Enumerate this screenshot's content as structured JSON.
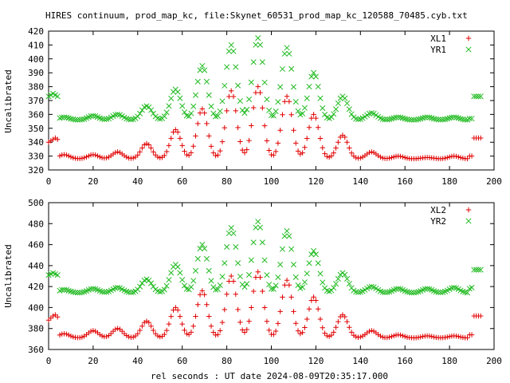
{
  "title": "HIRES continuum, prod_map_kc, file:Skynet_60531_prod_map_kc_120588_70485.cyb.txt",
  "colors": {
    "red": "#e00000",
    "green": "#22bb22",
    "axis": "#000000",
    "background": "#ffffff"
  },
  "chart_data": [
    {
      "type": "scatter",
      "ylabel": "Uncalibrated",
      "xlabel": "",
      "xlim": [
        0,
        200
      ],
      "ylim": [
        320,
        420
      ],
      "xticks": [
        0,
        20,
        40,
        60,
        80,
        100,
        120,
        140,
        160,
        180,
        200
      ],
      "yticks": [
        320,
        330,
        340,
        350,
        360,
        370,
        380,
        390,
        400,
        410,
        420
      ],
      "legend": "top-right",
      "base_values": [
        330,
        357
      ],
      "series": [
        {
          "name": "XL1",
          "marker": "plus",
          "color": "#e00000",
          "baseline": 328,
          "edges": [
            {
              "x": [
                0,
                1,
                2,
                3,
                4
              ],
              "y": [
                340,
                341,
                342,
                343,
                342
              ]
            },
            {
              "x": [
                189,
                190,
                191,
                192,
                193,
                194
              ],
              "y": [
                330,
                330,
                343,
                343,
                343,
                343
              ]
            }
          ],
          "bumps": [
            {
              "x": 7,
              "peak": 331
            },
            {
              "x": 20,
              "peak": 331
            },
            {
              "x": 31,
              "peak": 333
            },
            {
              "x": 44,
              "peak": 339
            },
            {
              "x": 57,
              "peak": 349
            },
            {
              "x": 69,
              "peak": 364
            },
            {
              "x": 82,
              "peak": 377
            },
            {
              "x": 94,
              "peak": 380
            },
            {
              "x": 107,
              "peak": 373
            },
            {
              "x": 119,
              "peak": 360
            },
            {
              "x": 132,
              "peak": 345
            },
            {
              "x": 145,
              "peak": 333
            },
            {
              "x": 157,
              "peak": 330
            },
            {
              "x": 170,
              "peak": 329
            },
            {
              "x": 182,
              "peak": 330
            }
          ]
        },
        {
          "name": "YR1",
          "marker": "cross",
          "color": "#22bb22",
          "baseline": 356,
          "edges": [
            {
              "x": [
                0,
                1,
                2,
                3,
                4
              ],
              "y": [
                373,
                374,
                375,
                374,
                373
              ]
            },
            {
              "x": [
                189,
                190,
                191,
                192,
                193,
                194
              ],
              "y": [
                357,
                357,
                373,
                373,
                373,
                373
              ]
            }
          ],
          "bumps": [
            {
              "x": 7,
              "peak": 358
            },
            {
              "x": 20,
              "peak": 359
            },
            {
              "x": 31,
              "peak": 360
            },
            {
              "x": 44,
              "peak": 366
            },
            {
              "x": 57,
              "peak": 378
            },
            {
              "x": 69,
              "peak": 395
            },
            {
              "x": 82,
              "peak": 410
            },
            {
              "x": 94,
              "peak": 415
            },
            {
              "x": 107,
              "peak": 408
            },
            {
              "x": 119,
              "peak": 390
            },
            {
              "x": 132,
              "peak": 373
            },
            {
              "x": 145,
              "peak": 361
            },
            {
              "x": 157,
              "peak": 358
            },
            {
              "x": 170,
              "peak": 358
            },
            {
              "x": 182,
              "peak": 358
            }
          ]
        }
      ]
    },
    {
      "type": "scatter",
      "ylabel": "Uncalibrated",
      "xlabel": "rel seconds : UT date 2024-08-09T20:35:17.000",
      "xlim": [
        0,
        200
      ],
      "ylim": [
        360,
        500
      ],
      "xticks": [
        0,
        20,
        40,
        60,
        80,
        100,
        120,
        140,
        160,
        180,
        200
      ],
      "yticks": [
        360,
        380,
        400,
        420,
        440,
        460,
        480,
        500
      ],
      "legend": "top-right",
      "base_values": [
        373,
        416
      ],
      "series": [
        {
          "name": "XL2",
          "marker": "plus",
          "color": "#e00000",
          "baseline": 371,
          "edges": [
            {
              "x": [
                0,
                1,
                2,
                3,
                4
              ],
              "y": [
                388,
                390,
                392,
                393,
                391
              ]
            },
            {
              "x": [
                189,
                190,
                191,
                192,
                193,
                194
              ],
              "y": [
                374,
                374,
                392,
                392,
                392,
                392
              ]
            }
          ],
          "bumps": [
            {
              "x": 7,
              "peak": 375
            },
            {
              "x": 20,
              "peak": 378
            },
            {
              "x": 31,
              "peak": 380
            },
            {
              "x": 44,
              "peak": 387
            },
            {
              "x": 57,
              "peak": 400
            },
            {
              "x": 69,
              "peak": 416
            },
            {
              "x": 82,
              "peak": 430
            },
            {
              "x": 94,
              "peak": 434
            },
            {
              "x": 107,
              "peak": 426
            },
            {
              "x": 119,
              "peak": 410
            },
            {
              "x": 132,
              "peak": 393
            },
            {
              "x": 145,
              "peak": 378
            },
            {
              "x": 157,
              "peak": 374
            },
            {
              "x": 170,
              "peak": 373
            },
            {
              "x": 182,
              "peak": 373
            }
          ]
        },
        {
          "name": "YR2",
          "marker": "cross",
          "color": "#22bb22",
          "baseline": 414,
          "edges": [
            {
              "x": [
                0,
                1,
                2,
                3,
                4
              ],
              "y": [
                431,
                432,
                433,
                432,
                431
              ]
            },
            {
              "x": [
                189,
                190,
                191,
                192,
                193,
                194
              ],
              "y": [
                418,
                419,
                436,
                436,
                436,
                436
              ]
            }
          ],
          "bumps": [
            {
              "x": 7,
              "peak": 417
            },
            {
              "x": 20,
              "peak": 418
            },
            {
              "x": 31,
              "peak": 419
            },
            {
              "x": 44,
              "peak": 427
            },
            {
              "x": 57,
              "peak": 441
            },
            {
              "x": 69,
              "peak": 460
            },
            {
              "x": 82,
              "peak": 476
            },
            {
              "x": 94,
              "peak": 482
            },
            {
              "x": 107,
              "peak": 473
            },
            {
              "x": 119,
              "peak": 454
            },
            {
              "x": 132,
              "peak": 433
            },
            {
              "x": 145,
              "peak": 420
            },
            {
              "x": 157,
              "peak": 418
            },
            {
              "x": 170,
              "peak": 418
            },
            {
              "x": 182,
              "peak": 419
            }
          ]
        }
      ]
    }
  ]
}
